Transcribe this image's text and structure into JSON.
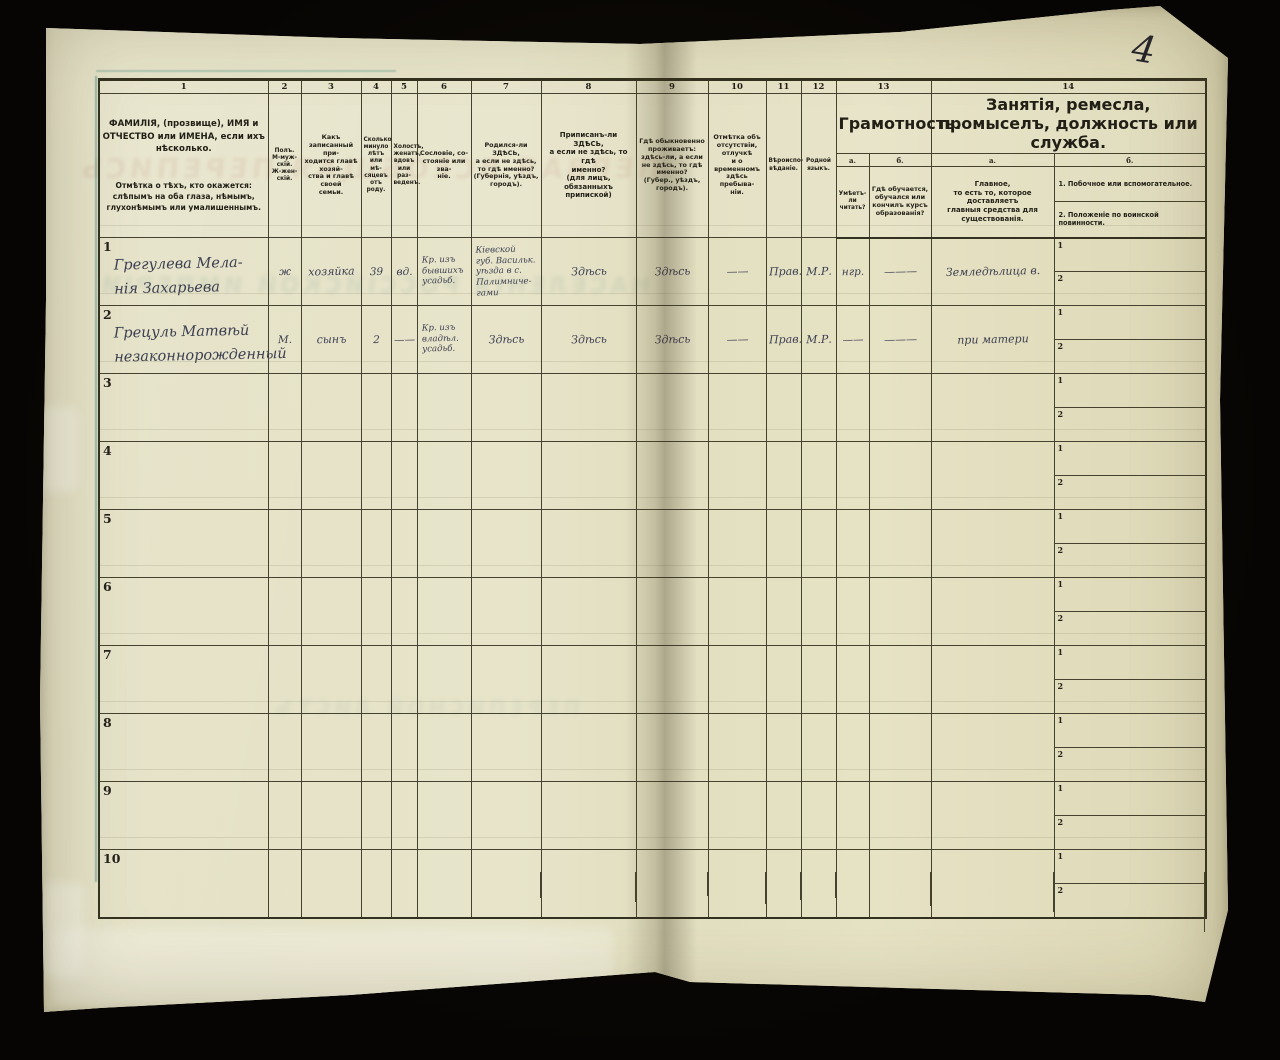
{
  "scan": {
    "page_number": "4",
    "colors": {
      "paper": "#e2dfc2",
      "background": "#090705",
      "rule_lines": "#45432f",
      "ink": "#3c3f51",
      "teal_edge_line": "#2d7d73"
    }
  },
  "bleed_through": {
    "line1": "ПЕРВАЯ ВСЕОБЩАЯ ПЕРЕПИСЬ",
    "line2": "НАСЕЛЕНІЯ РОССІЙСКОЙ ИМПЕРІИ",
    "line3": "ПЕРЕПИСНОЙ ЛИСТЪ"
  },
  "table": {
    "column_numbers": [
      "1",
      "2",
      "3",
      "4",
      "5",
      "6",
      "7",
      "8",
      "9",
      "10",
      "11",
      "12",
      "13",
      "14"
    ],
    "sub_labels": {
      "a": "а.",
      "b": "б."
    },
    "sub_row_labels": [
      "1",
      "2"
    ],
    "headers": {
      "c1_main": "ФАМИЛІЯ, (прозвище), ИМЯ и ОТЧЕСТВО или ИМЕНА, если ихъ нѣсколько.",
      "c1_note": "Отмѣтка о тѣхъ, кто окажется: слѣпымъ на оба глаза, нѣмымъ, глухонѣмымъ или умалишеннымъ.",
      "c2": "Полъ.\nМ-муж-\nскій.\nЖ-жен-\nскій.",
      "c3": "Какъ записанный при-\nходится главѣ хозяй-\nства и главѣ своей\nсемьи.",
      "c4": "Сколько\nминуло\nлѣтъ\nили мѣ-\nсяцевъ\nотъ роду.",
      "c5": "Холостъ,\nженатъ,\nвдовъ\nили раз-\nведенъ.",
      "c6": "Сословіе, со-\nстояніе или зва-\nніе.",
      "c7": "Родился-ли ЗДѢСЬ,\nа если не здѣсь,\nто гдѣ именно?\n(Губернія, уѣздъ, городъ).",
      "c8": "Приписанъ-ли ЗДѢСЬ,\nа если не здѣсь, то гдѣ\nименно?\n(для лицъ, обязанныхъ\nприпиской)",
      "c9": "Гдѣ обыкновенно\nпроживаетъ:\nздѣсь-ли, а если\nне здѣсь, то гдѣ\nименно?\n(Губер., уѣздъ, городъ).",
      "c10": "Отмѣтка объ\nотсутствіи, отлучкѣ\nи о временномъ\nздѣсь пребыва-\nніи.",
      "c11": "Вѣроиспо-\nвѣданіе.",
      "c12": "Родной\nязыкъ.",
      "c13_title": "Грамотность.",
      "c13a": "Умѣетъ-\nли\nчитать?",
      "c13b": "Гдѣ обучается,\nобучался или\nкончилъ курсъ\nобразованія?",
      "c14_title": "Занятія, ремесла, промыселъ, должность или служба.",
      "c14a": "Главное,\nто есть то, которое доставляетъ\nглавныя средства для существованія.",
      "c14b_item1": "1.  Побочное или вспомогательное.",
      "c14b_item2": "2.  Положеніе по воинской повинности."
    },
    "rows": [
      {
        "num": "1",
        "c1": "Грегулева Мела-\nнія Захарьева",
        "c2": "ж",
        "c3": "хозяйка",
        "c4": "39",
        "c5": "вд.",
        "c6": "Кр. изъ\nбывшихъ\nусадьб.",
        "c7": "Кіевской\nгуб. Васильк.\nуѣзда в с.\nПалимниче-\nгами",
        "c8": "Здѣсь",
        "c9": "Здѣсь",
        "c10": "——",
        "c11": "Прав.",
        "c12": "М.Р.",
        "c13a": "нгр.",
        "c13b": "———",
        "c14a": "Земледѣлица в."
      },
      {
        "num": "2",
        "c1": "Грецуль Матвѣй\nнезаконнорожденный",
        "c2": "М.",
        "c3": "сынъ",
        "c4": "2",
        "c5": "——",
        "c6": "Кр. изъ\nвладѣл.\nусадьб.",
        "c7": "Здѣсь",
        "c8": "Здѣсь",
        "c9": "Здѣсь",
        "c10": "——",
        "c11": "Прав.",
        "c12": "М.Р.",
        "c13a": "——",
        "c13b": "———",
        "c14a": "при матери"
      },
      {
        "num": "3",
        "c1": "",
        "c2": "",
        "c3": "",
        "c4": "",
        "c5": "",
        "c6": "",
        "c7": "",
        "c8": "",
        "c9": "",
        "c10": "",
        "c11": "",
        "c12": "",
        "c13a": "",
        "c13b": "",
        "c14a": ""
      },
      {
        "num": "4",
        "c1": "",
        "c2": "",
        "c3": "",
        "c4": "",
        "c5": "",
        "c6": "",
        "c7": "",
        "c8": "",
        "c9": "",
        "c10": "",
        "c11": "",
        "c12": "",
        "c13a": "",
        "c13b": "",
        "c14a": ""
      },
      {
        "num": "5",
        "c1": "",
        "c2": "",
        "c3": "",
        "c4": "",
        "c5": "",
        "c6": "",
        "c7": "",
        "c8": "",
        "c9": "",
        "c10": "",
        "c11": "",
        "c12": "",
        "c13a": "",
        "c13b": "",
        "c14a": ""
      },
      {
        "num": "6",
        "c1": "",
        "c2": "",
        "c3": "",
        "c4": "",
        "c5": "",
        "c6": "",
        "c7": "",
        "c8": "",
        "c9": "",
        "c10": "",
        "c11": "",
        "c12": "",
        "c13a": "",
        "c13b": "",
        "c14a": ""
      },
      {
        "num": "7",
        "c1": "",
        "c2": "",
        "c3": "",
        "c4": "",
        "c5": "",
        "c6": "",
        "c7": "",
        "c8": "",
        "c9": "",
        "c10": "",
        "c11": "",
        "c12": "",
        "c13a": "",
        "c13b": "",
        "c14a": ""
      },
      {
        "num": "8",
        "c1": "",
        "c2": "",
        "c3": "",
        "c4": "",
        "c5": "",
        "c6": "",
        "c7": "",
        "c8": "",
        "c9": "",
        "c10": "",
        "c11": "",
        "c12": "",
        "c13a": "",
        "c13b": "",
        "c14a": ""
      },
      {
        "num": "9",
        "c1": "",
        "c2": "",
        "c3": "",
        "c4": "",
        "c5": "",
        "c6": "",
        "c7": "",
        "c8": "",
        "c9": "",
        "c10": "",
        "c11": "",
        "c12": "",
        "c13a": "",
        "c13b": "",
        "c14a": ""
      },
      {
        "num": "10",
        "c1": "",
        "c2": "",
        "c3": "",
        "c4": "",
        "c5": "",
        "c6": "",
        "c7": "",
        "c8": "",
        "c9": "",
        "c10": "",
        "c11": "",
        "c12": "",
        "c13a": "",
        "c13b": "",
        "c14a": ""
      }
    ]
  }
}
